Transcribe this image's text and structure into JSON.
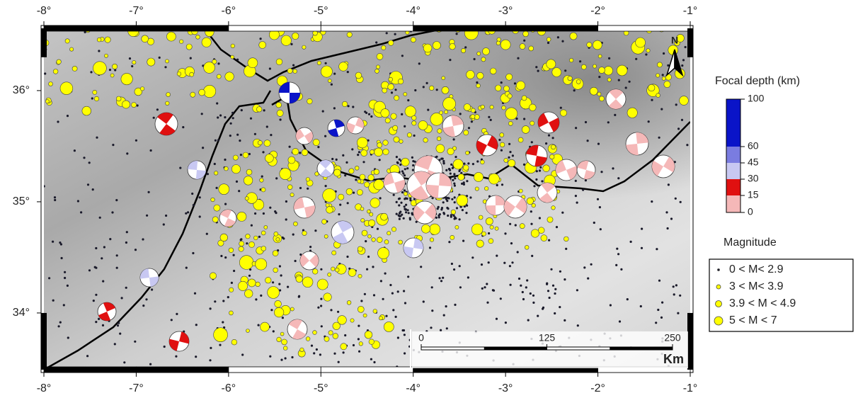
{
  "map": {
    "lon_range": [
      -8,
      -1
    ],
    "lat_range": [
      33.49,
      36.56
    ],
    "lon_ticks": [
      {
        "value": -8,
        "label": "-8°"
      },
      {
        "value": -7,
        "label": "-7°"
      },
      {
        "value": -6,
        "label": "-6°"
      },
      {
        "value": -5,
        "label": "-5°"
      },
      {
        "value": -4,
        "label": "-4°"
      },
      {
        "value": -3,
        "label": "-3°"
      },
      {
        "value": -2,
        "label": "-2°"
      },
      {
        "value": -1,
        "label": "-1°"
      }
    ],
    "lat_ticks": [
      {
        "value": 36,
        "label": "36°"
      },
      {
        "value": 35,
        "label": "35°"
      },
      {
        "value": 34,
        "label": "34°"
      }
    ],
    "north": "N",
    "scale_bar": {
      "ticks": [
        0,
        125,
        250
      ],
      "unit": "Km"
    }
  },
  "legend": {
    "depth_title": "Focal depth (km)",
    "depth_ticks": [
      100,
      60,
      45,
      30,
      15,
      0
    ],
    "depth_colors": [
      "#0a14c8",
      "#7a7ce0",
      "#c8c8f2",
      "#e01010",
      "#f5b8b8"
    ],
    "magnitude_title": "Magnitude",
    "magnitude_entries": [
      "0 < M< 2.9",
      "3 < M< 3.9",
      "3.9 < M < 4.9",
      "5 < M < 7"
    ]
  }
}
